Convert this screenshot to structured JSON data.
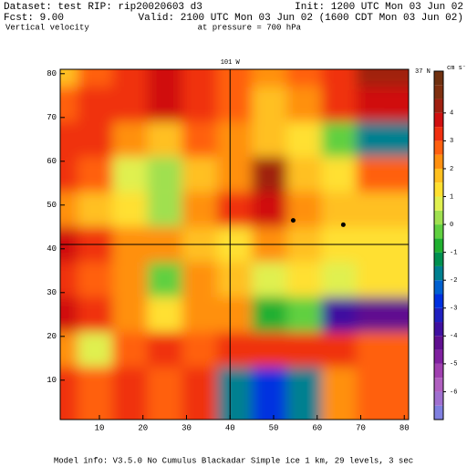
{
  "chart_data": {
    "type": "heatmap",
    "header": {
      "dataset": "Dataset: test   RIP: rip20020603 d3",
      "init": "Init: 1200 UTC Mon 03 Jun 02",
      "fcst": "Fcst:      9.00",
      "valid": "Valid: 2100 UTC Mon 03 Jun 02 (1600 CDT Mon 03 Jun 02)",
      "field": "Vertical velocity",
      "level": "at pressure =  700 hPa"
    },
    "footer": "Model info: V3.5.0 No Cumulus Blackadar  Simple ice     1 km,   29 levels,     3 sec",
    "x": [
      5,
      13,
      21,
      29,
      37,
      45,
      53,
      61,
      69,
      77
    ],
    "y": [
      77,
      69,
      61,
      53,
      45,
      37,
      29,
      21,
      13,
      5
    ],
    "z": [
      [
        1.5,
        2.5,
        3,
        3.5,
        3,
        2.5,
        2,
        2.5,
        3,
        4
      ],
      [
        2.5,
        3,
        3,
        3.5,
        3,
        2.5,
        1.5,
        2,
        3,
        3.5
      ],
      [
        3,
        3,
        2,
        1.5,
        2.5,
        2,
        1.5,
        1,
        -0.5,
        -2
      ],
      [
        3,
        2.5,
        0.5,
        0,
        1.5,
        2,
        4,
        1.5,
        1,
        2.5
      ],
      [
        2,
        1.5,
        1,
        0,
        2,
        3,
        3.5,
        2,
        1.5,
        1.5
      ],
      [
        3.5,
        3,
        2,
        2,
        1.5,
        1,
        2,
        1.5,
        1,
        1
      ],
      [
        3,
        2.5,
        2,
        -0.5,
        2,
        1.5,
        0.5,
        1,
        0.5,
        1
      ],
      [
        3.5,
        3,
        2,
        1,
        2,
        2,
        -1,
        -0.5,
        -4,
        -4.5
      ],
      [
        2,
        0.5,
        2.5,
        3,
        2.5,
        3,
        3,
        3,
        3,
        2.5
      ],
      [
        3,
        2.5,
        3,
        2.5,
        3,
        -2,
        -3,
        -2,
        2,
        2.5
      ]
    ],
    "xlim": [
      1,
      81
    ],
    "ylim": [
      1,
      81
    ],
    "xticks": [
      10,
      20,
      30,
      40,
      50,
      60,
      70,
      80
    ],
    "yticks": [
      10,
      20,
      30,
      40,
      50,
      60,
      70,
      80
    ],
    "cross_section": {
      "x": 40,
      "x_label": "101 W",
      "y": 41,
      "y_label": "37 N"
    },
    "points": {
      "x": [
        54.5,
        66
      ],
      "y": [
        46.5,
        45.5
      ]
    },
    "colorbar": {
      "units": "cm s⁻¹",
      "range": [
        -7,
        5.5
      ],
      "ticks": [
        4,
        3,
        2,
        1,
        0,
        -1,
        -2,
        -3,
        -4,
        -5,
        -6
      ],
      "colors": [
        "#8080e0",
        "#a070d0",
        "#b060c0",
        "#a040b0",
        "#8020a0",
        "#601090",
        "#4010a0",
        "#2020c0",
        "#0030e0",
        "#0060d0",
        "#008090",
        "#009050",
        "#20b030",
        "#60d040",
        "#a0e050",
        "#e0f050",
        "#ffe030",
        "#ffc020",
        "#ff9010",
        "#ff6010",
        "#f03010",
        "#d01010",
        "#a02010",
        "#803010",
        "#703010"
      ]
    }
  }
}
